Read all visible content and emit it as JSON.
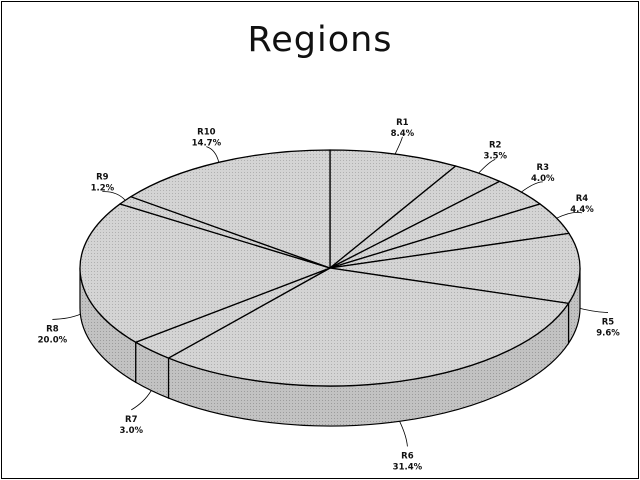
{
  "chart_data": {
    "type": "pie",
    "title": "Regions",
    "three_d": true,
    "categories": [
      "R1",
      "R2",
      "R3",
      "R4",
      "R5",
      "R6",
      "R7",
      "R8",
      "R9",
      "R10"
    ],
    "values": [
      8.4,
      3.5,
      4.0,
      4.4,
      9.6,
      31.4,
      3.0,
      20.0,
      1.2,
      14.7
    ],
    "value_labels": [
      "8.4%",
      "3.5%",
      "4.0%",
      "4.4%",
      "9.6%",
      "31.4%",
      "3.0%",
      "20.0%",
      "1.2%",
      "14.7%"
    ],
    "colors": {
      "fill": "#cfcfcf",
      "side": "#b9b9b9",
      "stroke": "#000000"
    }
  }
}
